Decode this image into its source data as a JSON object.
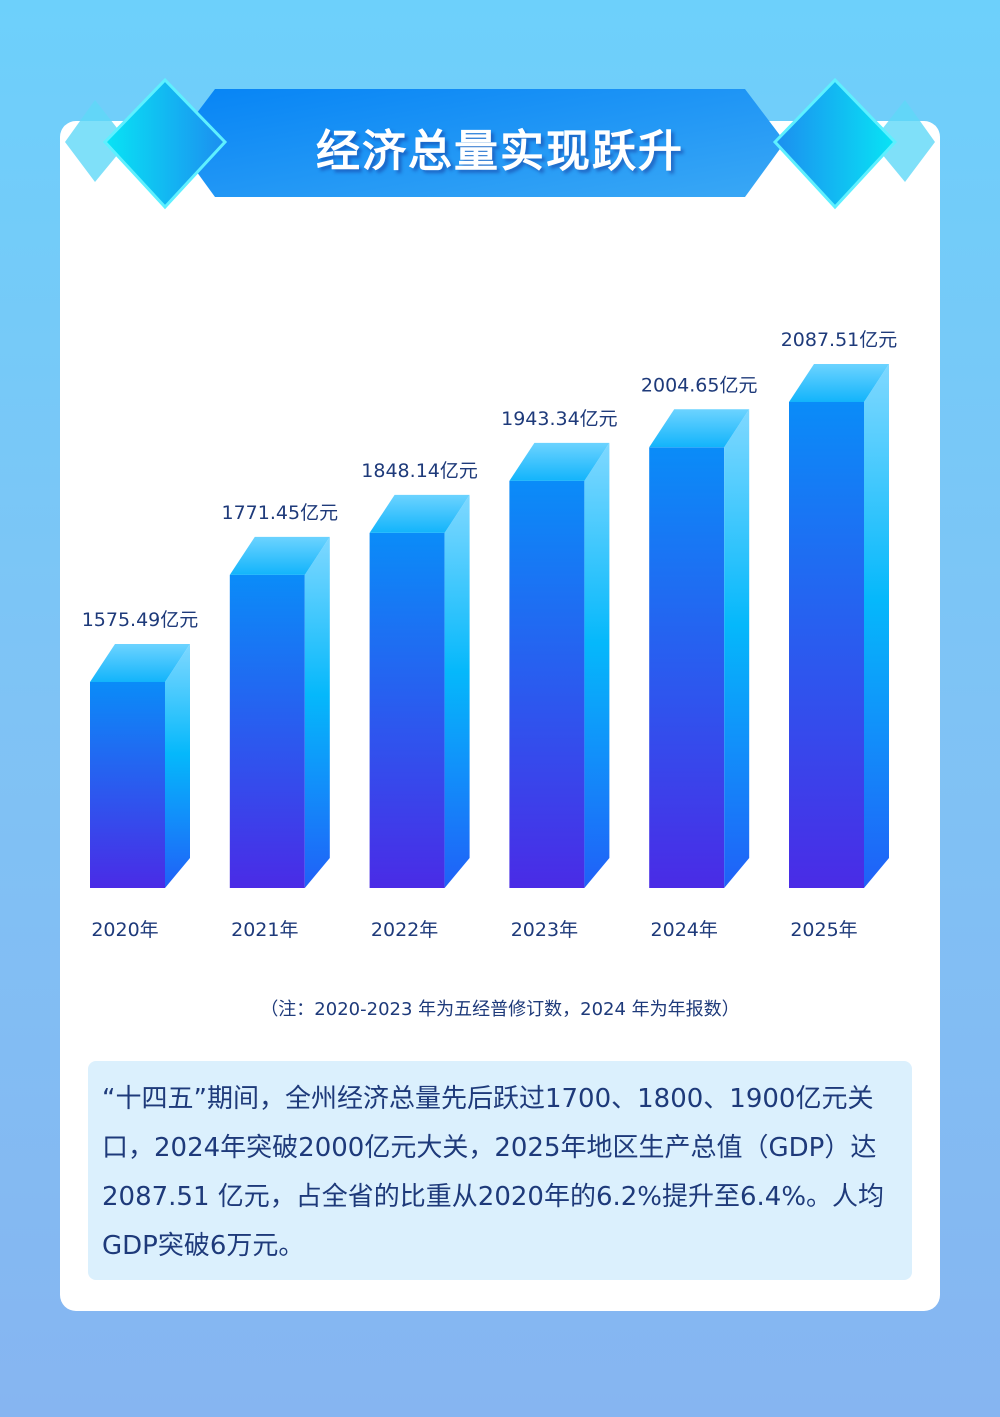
{
  "title": "经济总量实现跃升",
  "note": "（注：2020-2023 年为五经普修订数，2024 年为年报数）",
  "summary": "“十四五”期间，全州经济总量先后跃过1700、1800、1900亿元关口，2024年突破2000亿元大关，2025年地区生产总值（GDP）达 2087.51 亿元，占全省的比重从2020年的6.2%提升至6.4%。人均GDP突破6万元。",
  "chart_data": {
    "type": "bar",
    "title": "经济总量实现跃升",
    "categories": [
      "2020年",
      "2021年",
      "2022年",
      "2023年",
      "2024年",
      "2025年"
    ],
    "values": [
      1575.49,
      1771.45,
      1848.14,
      1943.34,
      2004.65,
      2087.51
    ],
    "data_labels": [
      "1575.49亿元",
      "1771.45亿元",
      "1848.14亿元",
      "1943.34亿元",
      "2004.65亿元",
      "2087.51亿元"
    ],
    "unit": "亿元",
    "xlabel": "",
    "ylabel": "",
    "grid": false,
    "legend": "none"
  },
  "colors": {
    "label": "#1e3a7a",
    "bar_top": "#0a8cf8",
    "bar_bottom": "#4a2be6",
    "side_top": "#7fd8ff",
    "side_bottom": "#2060f8"
  }
}
